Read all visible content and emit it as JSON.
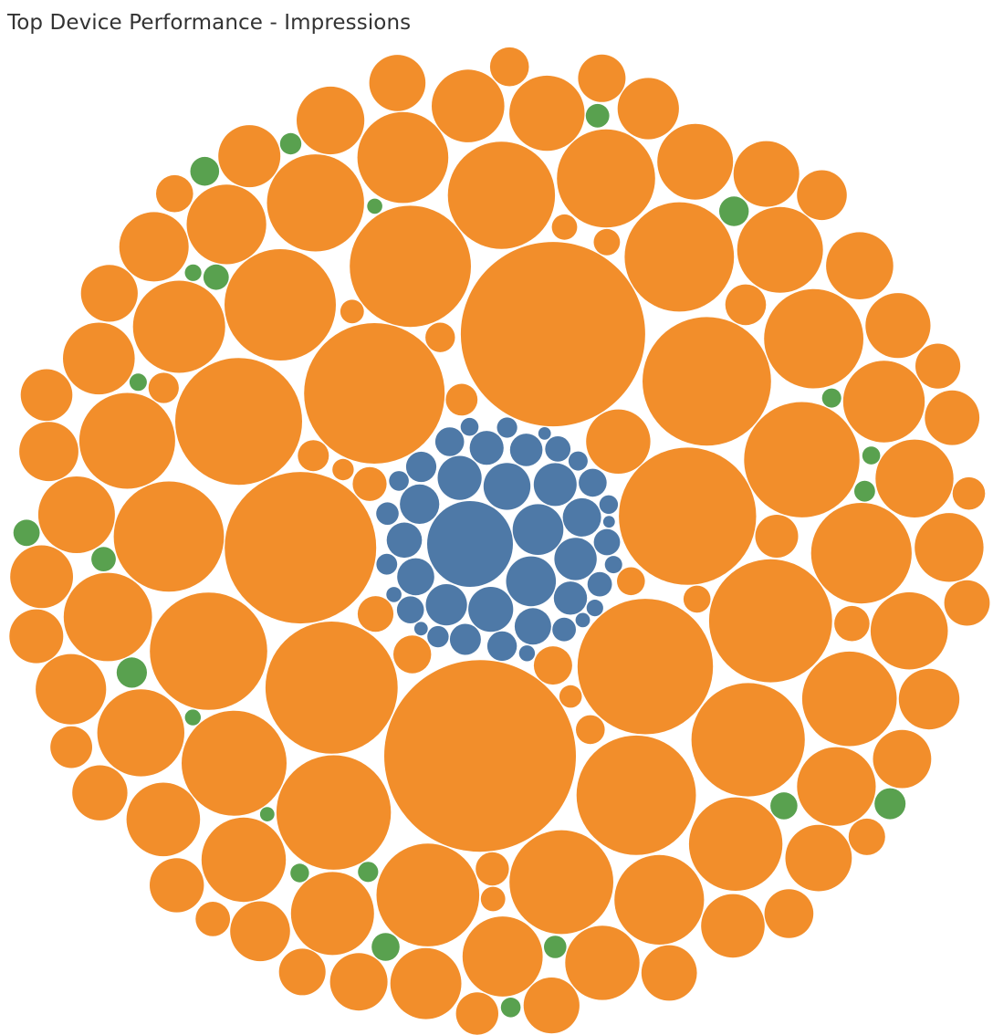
{
  "chart_data": {
    "type": "packed-bubble",
    "title": "Top Device Performance - Impressions",
    "legend": "none",
    "grid": false,
    "groups": [
      {
        "name": "",
        "color": "#4e79a7",
        "values": [
          1600,
          560,
          540,
          480,
          440,
          420,
          400,
          390,
          370,
          340,
          320,
          300,
          290,
          270,
          250,
          240,
          230,
          210,
          200,
          190,
          180,
          170,
          160,
          150,
          140,
          130,
          120,
          110,
          100,
          95,
          90,
          85,
          80,
          75,
          70,
          65,
          60,
          55,
          50,
          45,
          40,
          35,
          30
        ]
      },
      {
        "name": "",
        "color": "#f28e2b",
        "values": [
          8000,
          7400,
          5000,
          4300,
          4100,
          4000,
          3800,
          3600,
          3500,
          3300,
          3200,
          3100,
          3000,
          2900,
          2850,
          2800,
          2700,
          2650,
          2600,
          2500,
          2400,
          2350,
          2300,
          2200,
          2150,
          2100,
          2050,
          2000,
          1950,
          1900,
          1850,
          1800,
          1750,
          1700,
          1650,
          1600,
          1550,
          1500,
          1450,
          1400,
          1380,
          1350,
          1320,
          1300,
          1280,
          1250,
          1230,
          1200,
          1180,
          1150,
          1120,
          1100,
          1080,
          1050,
          1030,
          1000,
          980,
          960,
          940,
          920,
          900,
          880,
          860,
          840,
          820,
          800,
          780,
          760,
          740,
          720,
          700,
          690,
          680,
          670,
          660,
          650,
          640,
          630,
          620,
          610,
          600,
          590,
          580,
          570,
          560,
          550,
          540,
          530,
          520,
          510,
          500,
          490,
          480,
          470,
          460,
          450,
          440,
          430,
          420,
          410,
          400,
          390,
          380,
          370,
          360,
          350,
          340,
          330,
          320,
          310,
          300,
          290,
          280,
          270,
          260,
          250,
          240,
          230,
          220,
          210,
          200,
          190,
          180,
          170,
          160,
          150,
          140,
          130,
          120,
          110,
          100
        ]
      },
      {
        "name": "",
        "color": "#59a14f",
        "values": [
          560,
          500,
          440,
          400,
          380,
          360,
          340,
          320,
          300,
          290,
          280,
          270,
          260,
          250,
          240,
          230,
          220,
          210,
          200,
          190,
          180,
          170,
          160,
          150,
          140,
          130,
          120,
          110,
          100,
          95,
          90,
          85,
          80,
          75,
          70,
          65,
          60,
          55,
          50,
          45
        ]
      }
    ]
  }
}
